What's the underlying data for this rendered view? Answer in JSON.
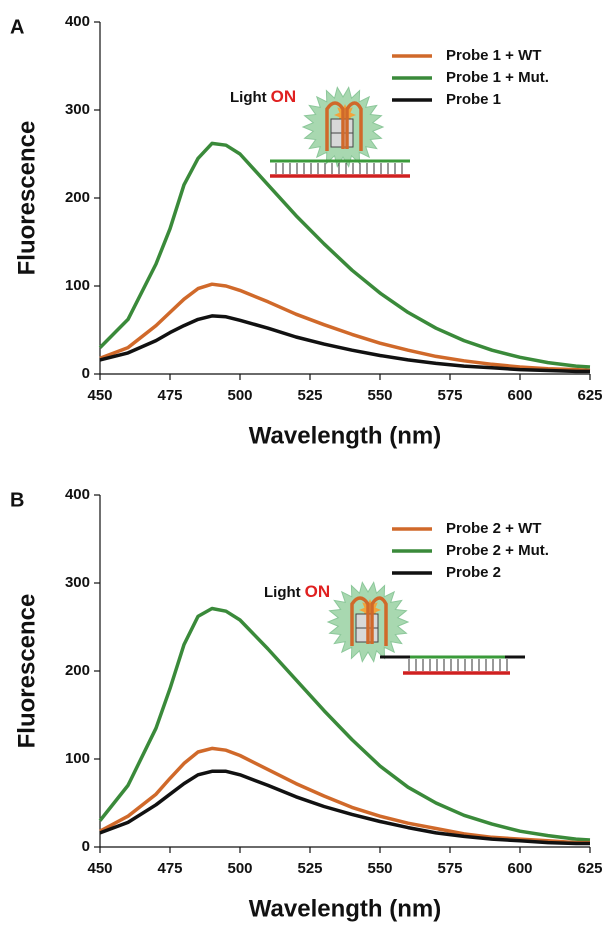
{
  "chart_data": [
    {
      "type": "line",
      "panel_label": "A",
      "xlabel": "Wavelength (nm)",
      "ylabel": "Fluorescence",
      "annotation": {
        "text": "Light",
        "highlight": "ON"
      },
      "x": [
        450,
        460,
        470,
        475,
        480,
        485,
        490,
        495,
        500,
        510,
        520,
        530,
        540,
        550,
        560,
        570,
        580,
        590,
        600,
        610,
        620,
        625
      ],
      "series": [
        {
          "name": "Probe 1 + WT",
          "color": "#d0692a",
          "values": [
            18,
            30,
            55,
            70,
            85,
            97,
            102,
            100,
            95,
            82,
            68,
            56,
            45,
            35,
            27,
            20,
            15,
            11,
            8,
            6,
            5,
            4
          ]
        },
        {
          "name": "Probe 1 + Mut.",
          "color": "#3a8a3a",
          "values": [
            30,
            62,
            125,
            165,
            215,
            245,
            262,
            260,
            250,
            215,
            180,
            148,
            118,
            92,
            70,
            52,
            38,
            27,
            19,
            13,
            9,
            8
          ]
        },
        {
          "name": "Probe 1",
          "color": "#111111",
          "values": [
            16,
            24,
            38,
            47,
            55,
            62,
            66,
            65,
            61,
            52,
            42,
            34,
            27,
            21,
            16,
            12,
            9,
            7,
            5,
            4,
            3,
            3
          ]
        }
      ],
      "xlim": [
        450,
        625
      ],
      "ylim": [
        0,
        400
      ],
      "xticks": [
        450,
        475,
        500,
        525,
        550,
        575,
        600,
        625
      ],
      "yticks": [
        0,
        100,
        200,
        300,
        400
      ],
      "legend": "upper right"
    },
    {
      "type": "line",
      "panel_label": "B",
      "xlabel": "Wavelength (nm)",
      "ylabel": "Fluorescence",
      "annotation": {
        "text": "Light",
        "highlight": "ON"
      },
      "x": [
        450,
        460,
        470,
        475,
        480,
        485,
        490,
        495,
        500,
        510,
        520,
        530,
        540,
        550,
        560,
        570,
        580,
        590,
        600,
        610,
        620,
        625
      ],
      "series": [
        {
          "name": "Probe 2 + WT",
          "color": "#d0692a",
          "values": [
            18,
            35,
            60,
            78,
            95,
            108,
            112,
            110,
            104,
            88,
            72,
            58,
            45,
            35,
            27,
            21,
            15,
            11,
            9,
            7,
            5,
            5
          ]
        },
        {
          "name": "Probe 2 + Mut.",
          "color": "#3a8a3a",
          "values": [
            30,
            70,
            135,
            180,
            230,
            262,
            271,
            268,
            258,
            225,
            190,
            155,
            122,
            92,
            68,
            50,
            36,
            26,
            18,
            13,
            9,
            8
          ]
        },
        {
          "name": "Probe 2",
          "color": "#111111",
          "values": [
            16,
            28,
            48,
            60,
            72,
            82,
            86,
            86,
            82,
            70,
            57,
            46,
            37,
            29,
            22,
            16,
            12,
            9,
            7,
            5,
            4,
            4
          ]
        }
      ],
      "xlim": [
        450,
        625
      ],
      "ylim": [
        0,
        400
      ],
      "xticks": [
        450,
        475,
        500,
        525,
        550,
        575,
        600,
        625
      ],
      "yticks": [
        0,
        100,
        200,
        300,
        400
      ],
      "legend": "upper right"
    }
  ]
}
